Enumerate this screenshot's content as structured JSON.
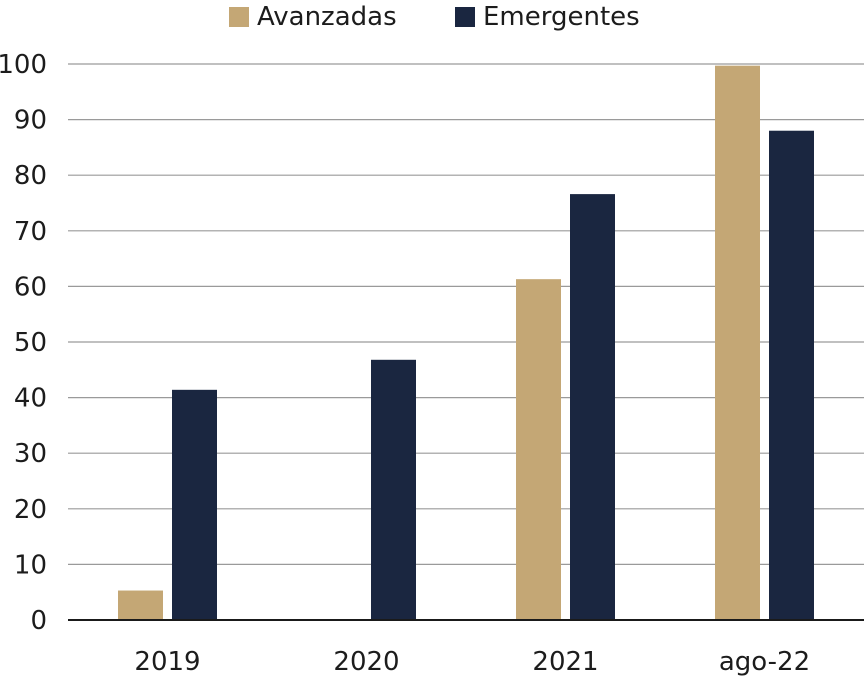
{
  "chart_data": {
    "type": "bar",
    "categories": [
      "2019",
      "2020",
      "2021",
      "ago-22"
    ],
    "series": [
      {
        "name": "Avanzadas",
        "values": [
          5.3,
          0,
          61.3,
          99.7
        ]
      },
      {
        "name": "Emergentes",
        "values": [
          41.4,
          46.8,
          76.6,
          88.0
        ]
      }
    ],
    "yticks": [
      "0",
      "10",
      "20",
      "30",
      "40",
      "50",
      "60",
      "70",
      "80",
      "90",
      "100"
    ],
    "ylim": [
      0,
      100
    ],
    "grid": true,
    "legend": "top-center"
  },
  "colors": {
    "Avanzadas": "#c4a775",
    "Emergentes": "#1a2640",
    "grid": "#9a9a9a",
    "axis": "#1a1a1a"
  }
}
